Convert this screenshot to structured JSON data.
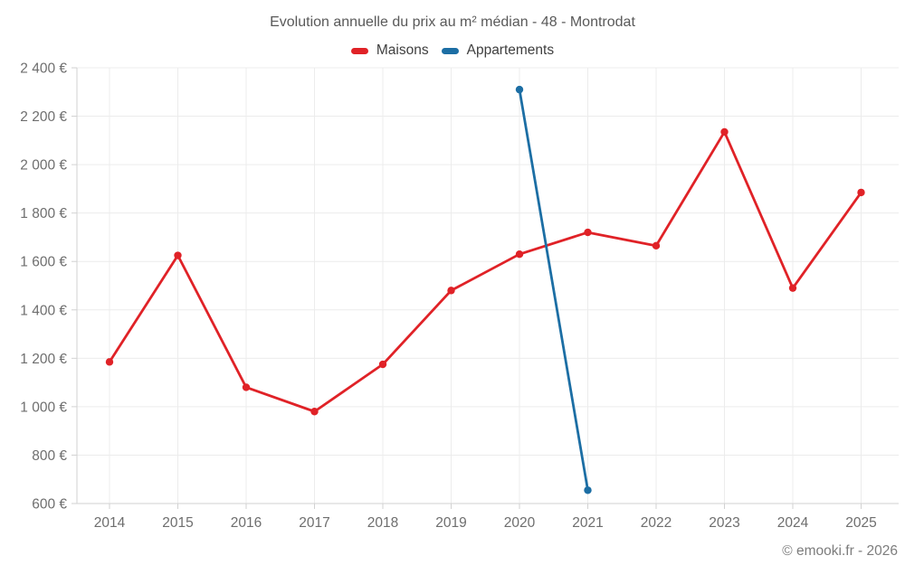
{
  "title": "Evolution annuelle du prix au m² médian - 48 - Montrodat",
  "footer": "© emooki.fr - 2026",
  "colors": {
    "maisons": "#e02227",
    "appartements": "#1c6ea4",
    "grid": "#ececec",
    "axis": "#d2d2d2",
    "tick_label": "#6e6e6e"
  },
  "chart_data": {
    "type": "line",
    "title": "Evolution annuelle du prix au m² médian - 48 - Montrodat",
    "x": [
      2014,
      2015,
      2016,
      2017,
      2018,
      2019,
      2020,
      2021,
      2022,
      2023,
      2024,
      2025
    ],
    "series": [
      {
        "name": "Maisons",
        "color": "#e02227",
        "values": [
          1185,
          1625,
          1080,
          980,
          1175,
          1480,
          1630,
          1720,
          1665,
          2135,
          1490,
          1885
        ]
      },
      {
        "name": "Appartements",
        "color": "#1c6ea4",
        "values": [
          null,
          null,
          null,
          null,
          null,
          null,
          2310,
          655,
          null,
          null,
          null,
          null
        ]
      }
    ],
    "ylim": [
      600,
      2400
    ],
    "ytick_step": 200,
    "y_suffix": " €",
    "grid": true,
    "legend_position": "top",
    "xlabel": "",
    "ylabel": ""
  }
}
